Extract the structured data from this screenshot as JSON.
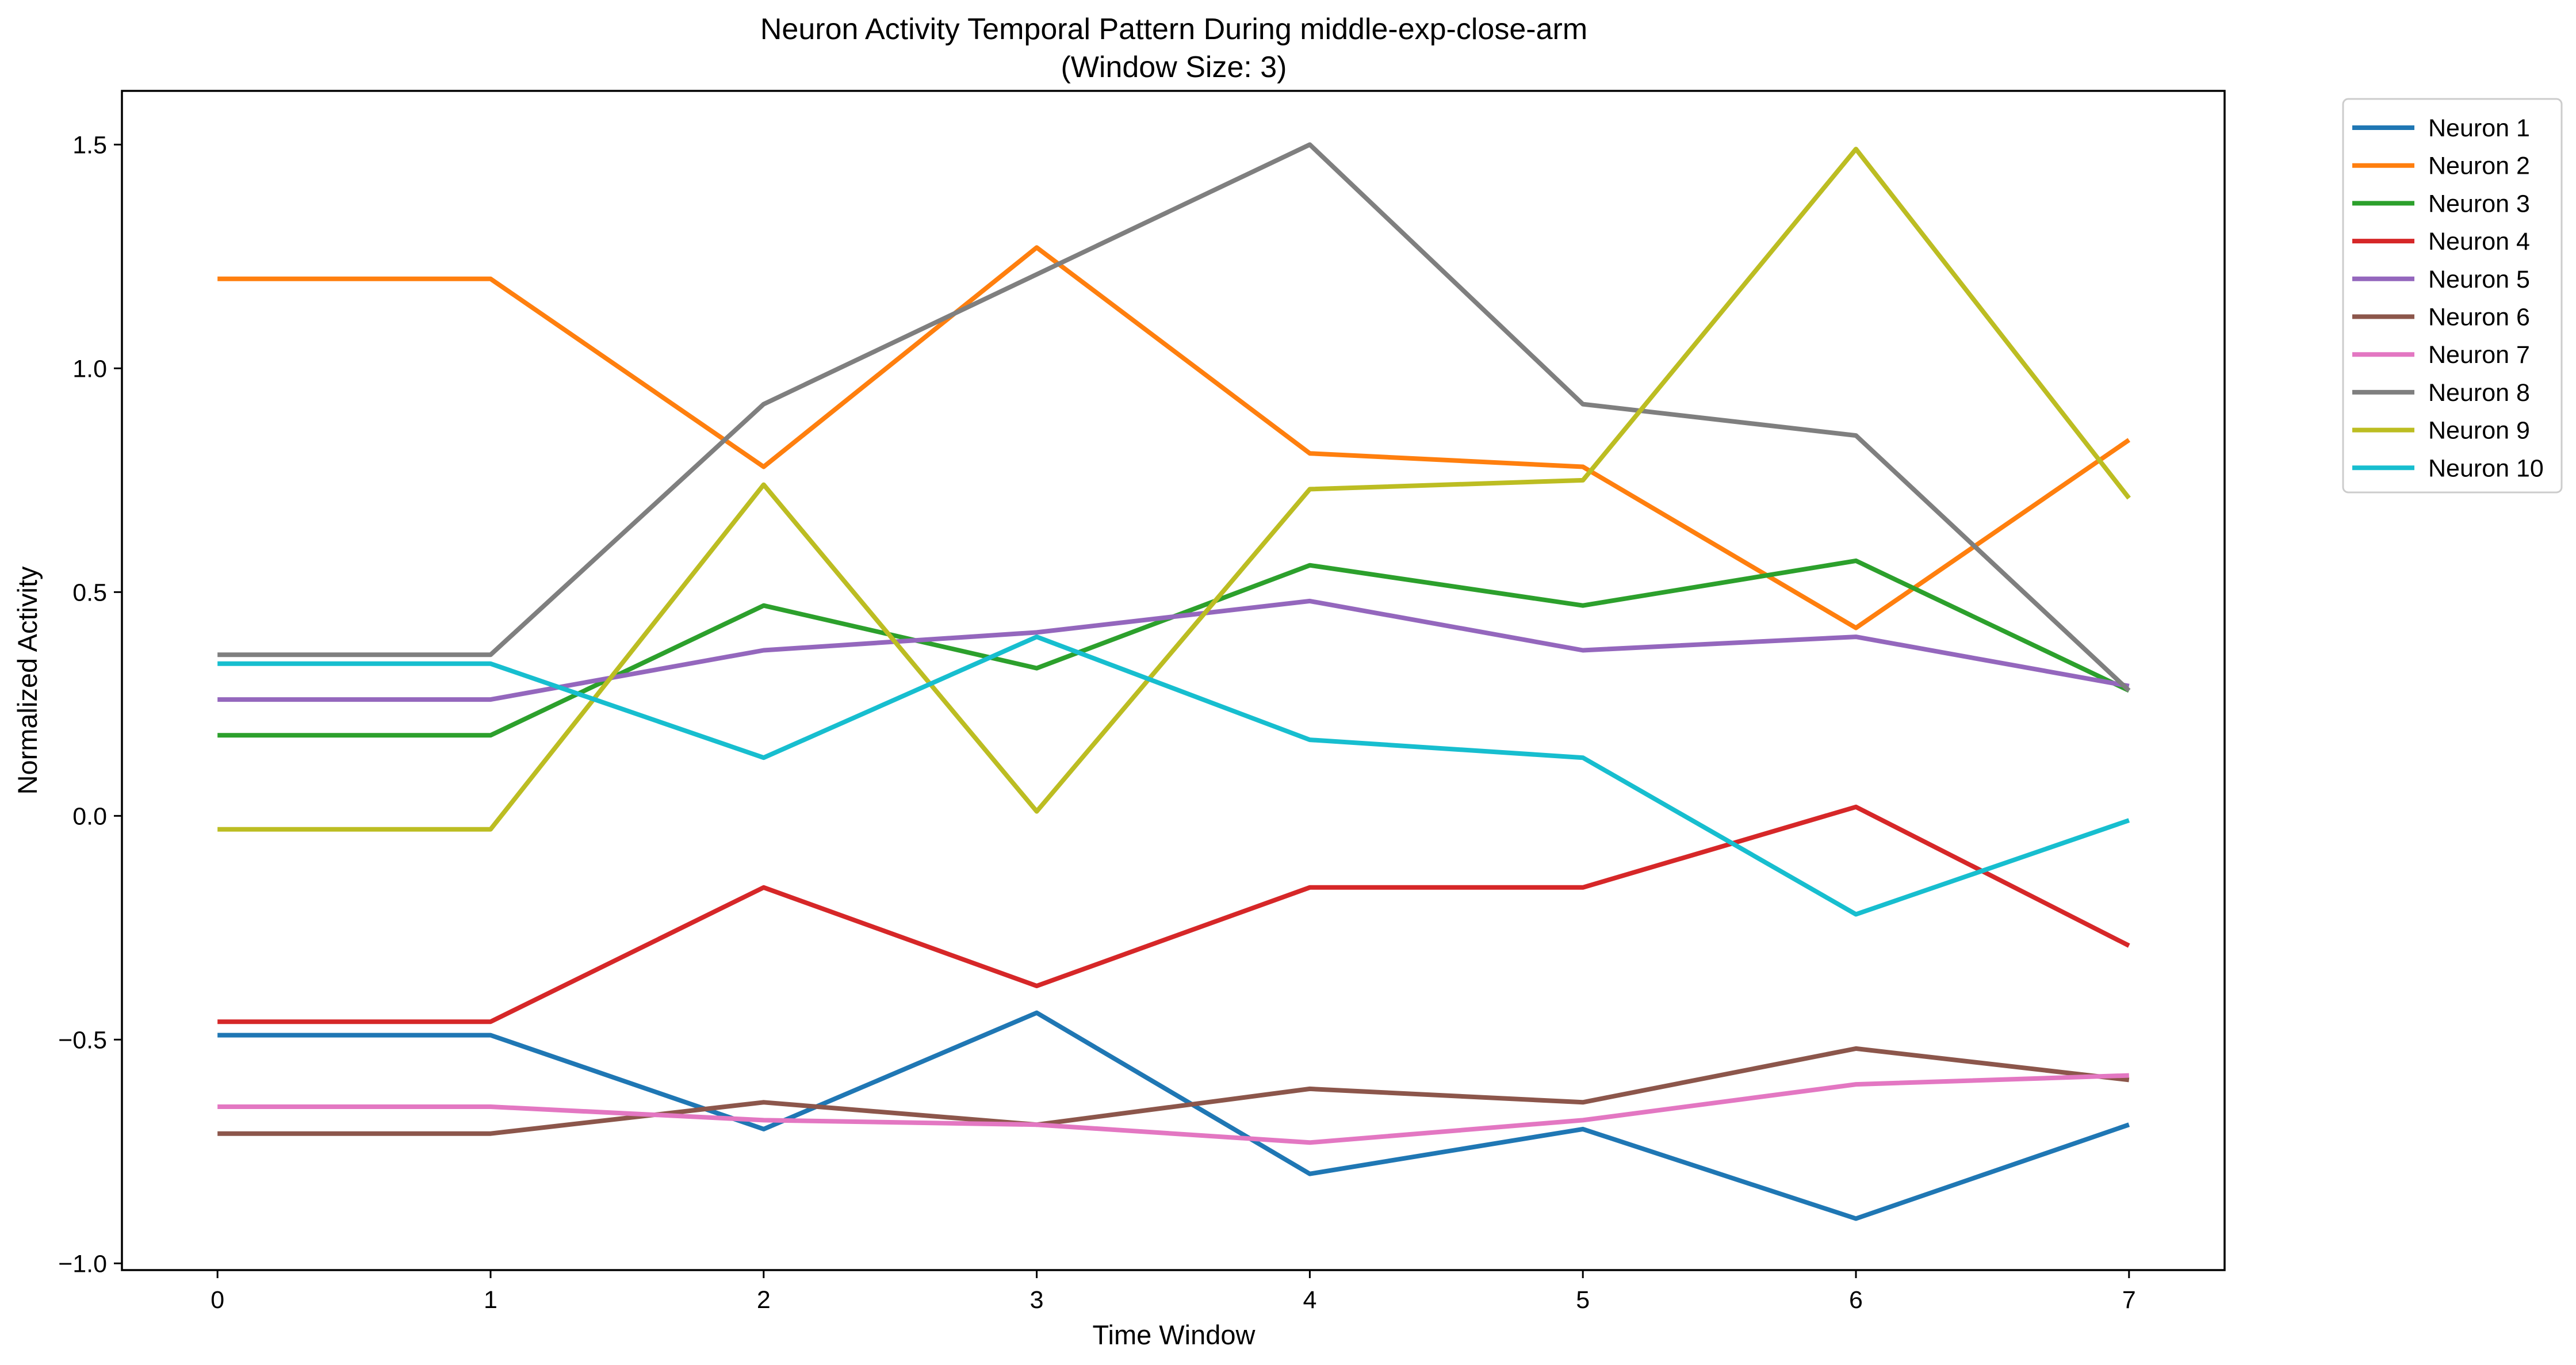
{
  "chart_data": {
    "type": "line",
    "title": "Neuron Activity Temporal Pattern During middle-exp-close-arm",
    "subtitle": "(Window Size: 3)",
    "xlabel": "Time Window",
    "ylabel": "Normalized Activity",
    "x": [
      0,
      1,
      2,
      3,
      4,
      5,
      6,
      7
    ],
    "x_ticks": [
      "0",
      "1",
      "2",
      "3",
      "4",
      "5",
      "6",
      "7"
    ],
    "xlim": [
      -0.35,
      7.35
    ],
    "y_ticks": [
      "−1.0",
      "−0.5",
      "0.0",
      "0.5",
      "1.0",
      "1.5"
    ],
    "y_tick_values": [
      -1.0,
      -0.5,
      0.0,
      0.5,
      1.0,
      1.5
    ],
    "ylim": [
      -1.015,
      1.62
    ],
    "grid": false,
    "legend_position": "outside-top-right",
    "series": [
      {
        "name": "Neuron 1",
        "color": "#1f77b4",
        "values": [
          -0.49,
          -0.49,
          -0.7,
          -0.44,
          -0.8,
          -0.7,
          -0.9,
          -0.69
        ]
      },
      {
        "name": "Neuron 2",
        "color": "#ff7f0e",
        "values": [
          1.2,
          1.2,
          0.78,
          1.27,
          0.81,
          0.78,
          0.42,
          0.84
        ]
      },
      {
        "name": "Neuron 3",
        "color": "#2ca02c",
        "values": [
          0.18,
          0.18,
          0.47,
          0.33,
          0.56,
          0.47,
          0.57,
          0.28
        ]
      },
      {
        "name": "Neuron 4",
        "color": "#d62728",
        "values": [
          -0.46,
          -0.46,
          -0.16,
          -0.38,
          -0.16,
          -0.16,
          0.02,
          -0.29
        ]
      },
      {
        "name": "Neuron 5",
        "color": "#9467bd",
        "values": [
          0.26,
          0.26,
          0.37,
          0.41,
          0.48,
          0.37,
          0.4,
          0.29
        ]
      },
      {
        "name": "Neuron 6",
        "color": "#8c564b",
        "values": [
          -0.71,
          -0.71,
          -0.64,
          -0.69,
          -0.61,
          -0.64,
          -0.52,
          -0.59
        ]
      },
      {
        "name": "Neuron 7",
        "color": "#e377c2",
        "values": [
          -0.65,
          -0.65,
          -0.68,
          -0.69,
          -0.73,
          -0.68,
          -0.6,
          -0.58
        ]
      },
      {
        "name": "Neuron 8",
        "color": "#7f7f7f",
        "values": [
          0.36,
          0.36,
          0.92,
          1.21,
          1.5,
          0.92,
          0.85,
          0.28
        ]
      },
      {
        "name": "Neuron 9",
        "color": "#bcbd22",
        "values": [
          -0.03,
          -0.03,
          0.74,
          0.01,
          0.73,
          0.75,
          1.49,
          0.71
        ]
      },
      {
        "name": "Neuron 10",
        "color": "#17becf",
        "values": [
          0.34,
          0.34,
          0.13,
          0.4,
          0.17,
          0.13,
          -0.22,
          -0.01
        ]
      }
    ]
  }
}
